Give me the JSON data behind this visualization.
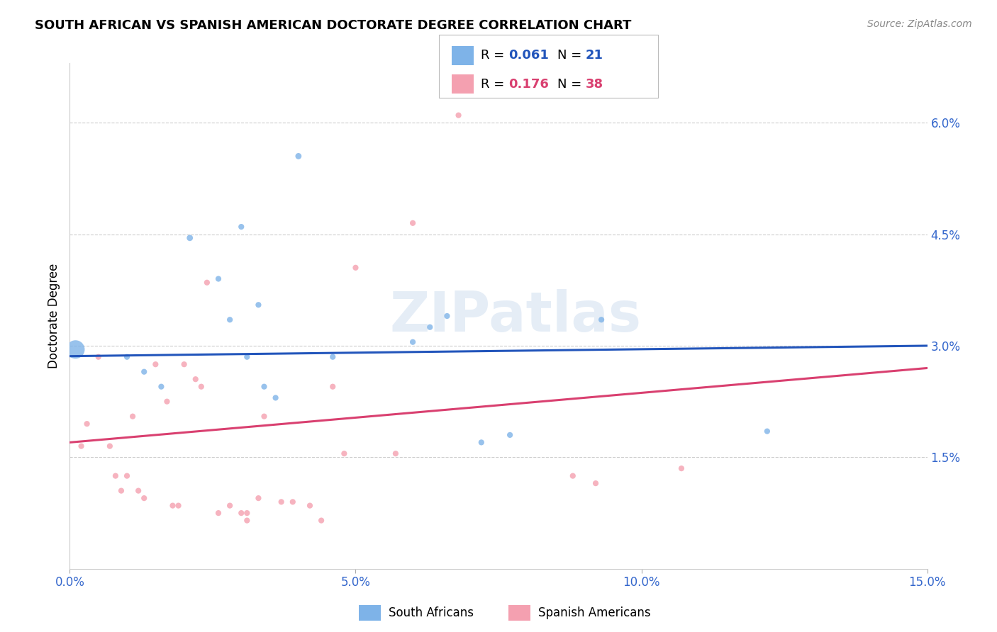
{
  "title": "SOUTH AFRICAN VS SPANISH AMERICAN DOCTORATE DEGREE CORRELATION CHART",
  "source": "Source: ZipAtlas.com",
  "xlabel": "",
  "ylabel": "Doctorate Degree",
  "xlim": [
    0.0,
    0.15
  ],
  "ylim": [
    0.0,
    0.068
  ],
  "yticks": [
    0.015,
    0.03,
    0.045,
    0.06
  ],
  "ytick_labels": [
    "1.5%",
    "3.0%",
    "4.5%",
    "6.0%"
  ],
  "xticks": [
    0.0,
    0.05,
    0.1,
    0.15
  ],
  "xtick_labels": [
    "0.0%",
    "5.0%",
    "10.0%",
    "15.0%"
  ],
  "blue_label": "South Africans",
  "pink_label": "Spanish Americans",
  "blue_R": "0.061",
  "blue_N": "21",
  "pink_R": "0.176",
  "pink_N": "38",
  "blue_color": "#7EB3E8",
  "pink_color": "#F4A0B0",
  "blue_line_color": "#2255BB",
  "pink_line_color": "#D94070",
  "watermark": "ZIPatlas",
  "blue_line": [
    [
      0.0,
      0.0286
    ],
    [
      0.15,
      0.03
    ]
  ],
  "pink_line": [
    [
      0.0,
      0.017
    ],
    [
      0.15,
      0.027
    ]
  ],
  "blue_points": [
    [
      0.001,
      0.0295,
      350
    ],
    [
      0.01,
      0.0285,
      35
    ],
    [
      0.013,
      0.0265,
      35
    ],
    [
      0.016,
      0.0245,
      35
    ],
    [
      0.021,
      0.0445,
      40
    ],
    [
      0.026,
      0.039,
      35
    ],
    [
      0.028,
      0.0335,
      35
    ],
    [
      0.03,
      0.046,
      35
    ],
    [
      0.031,
      0.0285,
      35
    ],
    [
      0.033,
      0.0355,
      35
    ],
    [
      0.034,
      0.0245,
      35
    ],
    [
      0.036,
      0.023,
      35
    ],
    [
      0.04,
      0.0555,
      40
    ],
    [
      0.046,
      0.0285,
      35
    ],
    [
      0.06,
      0.0305,
      35
    ],
    [
      0.063,
      0.0325,
      35
    ],
    [
      0.066,
      0.034,
      35
    ],
    [
      0.072,
      0.017,
      35
    ],
    [
      0.077,
      0.018,
      35
    ],
    [
      0.093,
      0.0335,
      35
    ],
    [
      0.122,
      0.0185,
      35
    ]
  ],
  "pink_points": [
    [
      0.002,
      0.0165,
      35
    ],
    [
      0.003,
      0.0195,
      35
    ],
    [
      0.005,
      0.0285,
      35
    ],
    [
      0.007,
      0.0165,
      35
    ],
    [
      0.008,
      0.0125,
      35
    ],
    [
      0.009,
      0.0105,
      35
    ],
    [
      0.01,
      0.0125,
      35
    ],
    [
      0.011,
      0.0205,
      35
    ],
    [
      0.012,
      0.0105,
      35
    ],
    [
      0.013,
      0.0095,
      35
    ],
    [
      0.015,
      0.0275,
      35
    ],
    [
      0.017,
      0.0225,
      35
    ],
    [
      0.018,
      0.0085,
      35
    ],
    [
      0.019,
      0.0085,
      35
    ],
    [
      0.02,
      0.0275,
      35
    ],
    [
      0.022,
      0.0255,
      35
    ],
    [
      0.023,
      0.0245,
      35
    ],
    [
      0.024,
      0.0385,
      35
    ],
    [
      0.026,
      0.0075,
      35
    ],
    [
      0.028,
      0.0085,
      35
    ],
    [
      0.03,
      0.0075,
      35
    ],
    [
      0.031,
      0.0065,
      35
    ],
    [
      0.031,
      0.0075,
      35
    ],
    [
      0.033,
      0.0095,
      35
    ],
    [
      0.034,
      0.0205,
      35
    ],
    [
      0.037,
      0.009,
      35
    ],
    [
      0.039,
      0.009,
      35
    ],
    [
      0.042,
      0.0085,
      35
    ],
    [
      0.044,
      0.0065,
      35
    ],
    [
      0.046,
      0.0245,
      35
    ],
    [
      0.048,
      0.0155,
      35
    ],
    [
      0.05,
      0.0405,
      35
    ],
    [
      0.057,
      0.0155,
      35
    ],
    [
      0.06,
      0.0465,
      35
    ],
    [
      0.068,
      0.061,
      35
    ],
    [
      0.088,
      0.0125,
      35
    ],
    [
      0.092,
      0.0115,
      35
    ],
    [
      0.107,
      0.0135,
      35
    ]
  ]
}
